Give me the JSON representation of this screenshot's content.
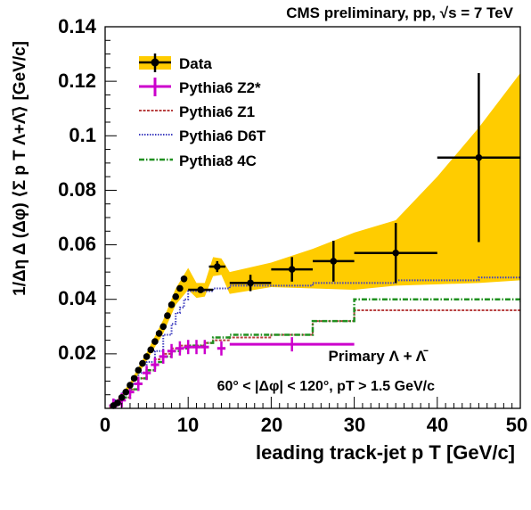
{
  "chart_data": {
    "type": "line",
    "title": "CMS preliminary, pp, √s = 7 TeV",
    "xlabel": "leading track-jet p T [GeV/c]",
    "ylabel": "1/Δη Δ (Δφ) ⟨Σ p T Λ+Λ̄⟩ [GeV/c]",
    "xlim": [
      0,
      50
    ],
    "ylim": [
      0,
      0.14
    ],
    "xticks": [
      "0",
      "10",
      "20",
      "30",
      "40",
      "50"
    ],
    "yticks": [
      "0.02",
      "0.04",
      "0.06",
      "0.08",
      "0.1",
      "0.12",
      "0.14"
    ],
    "annotations": [
      "Primary Λ + Λ̄",
      "60° < |Δφ| < 120°, pT > 1.5 GeV/c"
    ],
    "legend_position": "top-left",
    "series": [
      {
        "name": "Data",
        "color": "#000000",
        "band_color": "#ffcc00",
        "points": [
          {
            "x": 1.0,
            "y": 0.001,
            "xerr": 0.5,
            "yerr": 0.0006
          },
          {
            "x": 1.5,
            "y": 0.002,
            "xerr": 0.5,
            "yerr": 0.0006
          },
          {
            "x": 2.0,
            "y": 0.004,
            "xerr": 0.5,
            "yerr": 0.0006
          },
          {
            "x": 2.5,
            "y": 0.006,
            "xerr": 0.5,
            "yerr": 0.0006
          },
          {
            "x": 3.0,
            "y": 0.0085,
            "xerr": 0.5,
            "yerr": 0.0006
          },
          {
            "x": 3.5,
            "y": 0.011,
            "xerr": 0.5,
            "yerr": 0.0006
          },
          {
            "x": 4.0,
            "y": 0.014,
            "xerr": 0.5,
            "yerr": 0.0006
          },
          {
            "x": 4.5,
            "y": 0.0165,
            "xerr": 0.5,
            "yerr": 0.0006
          },
          {
            "x": 5.0,
            "y": 0.019,
            "xerr": 0.5,
            "yerr": 0.0006
          },
          {
            "x": 5.5,
            "y": 0.0215,
            "xerr": 0.5,
            "yerr": 0.0006
          },
          {
            "x": 6.0,
            "y": 0.0245,
            "xerr": 0.5,
            "yerr": 0.0006
          },
          {
            "x": 6.5,
            "y": 0.0275,
            "xerr": 0.5,
            "yerr": 0.0006
          },
          {
            "x": 7.0,
            "y": 0.03,
            "xerr": 0.5,
            "yerr": 0.0006
          },
          {
            "x": 7.5,
            "y": 0.034,
            "xerr": 0.5,
            "yerr": 0.0008
          },
          {
            "x": 8.0,
            "y": 0.038,
            "xerr": 0.5,
            "yerr": 0.0008
          },
          {
            "x": 8.5,
            "y": 0.041,
            "xerr": 0.5,
            "yerr": 0.0008
          },
          {
            "x": 9.0,
            "y": 0.044,
            "xerr": 0.5,
            "yerr": 0.0008
          },
          {
            "x": 9.5,
            "y": 0.0475,
            "xerr": 0.5,
            "yerr": 0.001
          },
          {
            "x": 11.5,
            "y": 0.0435,
            "xerr": 1.5,
            "yerr": 0.001
          },
          {
            "x": 13.5,
            "y": 0.052,
            "xerr": 1.0,
            "yerr": 0.002
          },
          {
            "x": 17.5,
            "y": 0.046,
            "xerr": 2.5,
            "yerr": 0.003
          },
          {
            "x": 22.5,
            "y": 0.051,
            "xerr": 2.5,
            "yerr": 0.0045
          },
          {
            "x": 27.5,
            "y": 0.054,
            "xerr": 2.5,
            "yerr": 0.0075
          },
          {
            "x": 35.0,
            "y": 0.057,
            "xerr": 5.0,
            "yerr": 0.011
          },
          {
            "x": 45.0,
            "y": 0.092,
            "xerr": 5.0,
            "yerr": 0.031
          }
        ],
        "band_upper": [
          [
            1,
            0.0014
          ],
          [
            3,
            0.0095
          ],
          [
            5,
            0.0205
          ],
          [
            7,
            0.0325
          ],
          [
            8.5,
            0.044
          ],
          [
            10,
            0.0515
          ],
          [
            11,
            0.046
          ],
          [
            12,
            0.046
          ],
          [
            13,
            0.0555
          ],
          [
            14,
            0.055
          ],
          [
            15,
            0.05
          ],
          [
            20,
            0.0535
          ],
          [
            25,
            0.0585
          ],
          [
            30,
            0.0645
          ],
          [
            35,
            0.069
          ],
          [
            40,
            0.085
          ],
          [
            45,
            0.103
          ],
          [
            50,
            0.123
          ]
        ],
        "band_lower": [
          [
            1,
            0.0006
          ],
          [
            3,
            0.0075
          ],
          [
            5,
            0.0175
          ],
          [
            7,
            0.0275
          ],
          [
            8.5,
            0.038
          ],
          [
            10,
            0.0435
          ],
          [
            11,
            0.0405
          ],
          [
            12,
            0.041
          ],
          [
            13,
            0.0485
          ],
          [
            14,
            0.049
          ],
          [
            15,
            0.042
          ],
          [
            20,
            0.0445
          ],
          [
            25,
            0.044
          ],
          [
            30,
            0.0435
          ],
          [
            35,
            0.045
          ],
          [
            40,
            0.0455
          ],
          [
            45,
            0.046
          ],
          [
            50,
            0.047
          ]
        ]
      },
      {
        "name": "Pythia6 Z2*",
        "color": "#cc00cc",
        "style": "solid",
        "points": [
          {
            "x": 1.0,
            "y": 0.001
          },
          {
            "x": 2.0,
            "y": 0.003
          },
          {
            "x": 3.0,
            "y": 0.006
          },
          {
            "x": 4.0,
            "y": 0.009
          },
          {
            "x": 5.0,
            "y": 0.013
          },
          {
            "x": 6.0,
            "y": 0.016
          },
          {
            "x": 7.0,
            "y": 0.019
          },
          {
            "x": 8.0,
            "y": 0.021
          },
          {
            "x": 9.0,
            "y": 0.022
          },
          {
            "x": 10.0,
            "y": 0.0225
          },
          {
            "x": 11.0,
            "y": 0.0225
          },
          {
            "x": 12.0,
            "y": 0.0225
          },
          {
            "x": 14.0,
            "y": 0.022
          },
          {
            "x": 22.5,
            "y": 0.0235,
            "xerr": 7.5
          }
        ]
      },
      {
        "name": "Pythia6 Z1",
        "color": "#b84040",
        "style": "dashed",
        "steps": [
          [
            0.5,
            0.0005
          ],
          [
            1,
            0.002
          ],
          [
            2,
            0.004
          ],
          [
            3,
            0.007
          ],
          [
            4,
            0.011
          ],
          [
            5,
            0.014
          ],
          [
            6,
            0.018
          ],
          [
            7,
            0.02
          ],
          [
            8,
            0.022
          ],
          [
            9,
            0.023
          ],
          [
            10,
            0.023
          ],
          [
            12,
            0.024
          ],
          [
            13,
            0.025
          ],
          [
            15,
            0.026
          ],
          [
            20,
            0.027
          ],
          [
            25,
            0.032
          ],
          [
            30,
            0.036
          ],
          [
            35,
            0.036
          ],
          [
            40,
            0.036
          ],
          [
            45,
            0.036
          ],
          [
            50,
            0.036
          ]
        ]
      },
      {
        "name": "Pythia6 D6T",
        "color": "#4040c0",
        "style": "dotted",
        "steps": [
          [
            0.5,
            0.001
          ],
          [
            1,
            0.003
          ],
          [
            2,
            0.006
          ],
          [
            3,
            0.009
          ],
          [
            4,
            0.013
          ],
          [
            5,
            0.017
          ],
          [
            6,
            0.021
          ],
          [
            7,
            0.027
          ],
          [
            8,
            0.031
          ],
          [
            8.5,
            0.035
          ],
          [
            9,
            0.037
          ],
          [
            9.5,
            0.04
          ],
          [
            10,
            0.043
          ],
          [
            12,
            0.043
          ],
          [
            13,
            0.044
          ],
          [
            15,
            0.045
          ],
          [
            25,
            0.046
          ],
          [
            30,
            0.046
          ],
          [
            35,
            0.047
          ],
          [
            40,
            0.047
          ],
          [
            45,
            0.048
          ],
          [
            50,
            0.048
          ]
        ]
      },
      {
        "name": "Pythia8 4C",
        "color": "#209020",
        "style": "dashdot",
        "steps": [
          [
            0.5,
            0.001
          ],
          [
            1,
            0.002
          ],
          [
            2,
            0.004
          ],
          [
            3,
            0.007
          ],
          [
            4,
            0.011
          ],
          [
            5,
            0.014
          ],
          [
            6,
            0.017
          ],
          [
            7,
            0.019
          ],
          [
            8,
            0.021
          ],
          [
            9,
            0.022
          ],
          [
            10,
            0.023
          ],
          [
            12,
            0.024
          ],
          [
            13,
            0.026
          ],
          [
            15,
            0.027
          ],
          [
            25,
            0.032
          ],
          [
            30,
            0.04
          ],
          [
            35,
            0.04
          ],
          [
            40,
            0.04
          ],
          [
            45,
            0.04
          ],
          [
            50,
            0.039
          ]
        ]
      }
    ]
  }
}
